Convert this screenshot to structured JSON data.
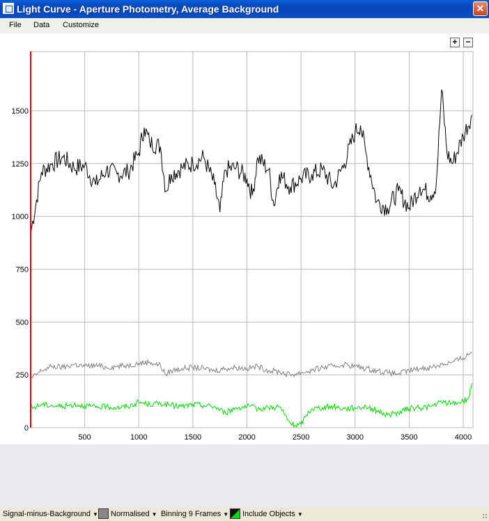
{
  "window": {
    "title": "Light Curve - Aperture Photometry, Average Background",
    "close_glyph": "✕"
  },
  "menu": {
    "items": [
      "File",
      "Data",
      "Customize"
    ]
  },
  "plot_controls": {
    "zoom_in": "+",
    "zoom_out": "−"
  },
  "statusbar": {
    "signal_mode": "Signal-minus-Background",
    "normalised": "Normalised",
    "binning": "Binning 9 Frames",
    "include_objects": "Include Objects"
  },
  "chart_data": {
    "type": "line",
    "title": "",
    "xlabel": "",
    "ylabel": "",
    "xlim": [
      0,
      4090
    ],
    "ylim": [
      0,
      1780
    ],
    "x_ticks": [
      500,
      1000,
      1500,
      2000,
      2500,
      3000,
      3500,
      4000
    ],
    "y_ticks": [
      0,
      250,
      500,
      750,
      1000,
      1250,
      1500
    ],
    "grid": true,
    "cursor_line_x": 0,
    "colors": {
      "target": "#000000",
      "comparison": "#808080",
      "background": "#00DD00",
      "cursor": "#E00000",
      "grid": "#B8B8B8"
    },
    "series": [
      {
        "key": "target",
        "x": [
          0,
          100,
          200,
          300,
          400,
          500,
          600,
          700,
          800,
          900,
          1000,
          1050,
          1100,
          1200,
          1250,
          1300,
          1400,
          1500,
          1600,
          1700,
          1750,
          1800,
          1900,
          2000,
          2050,
          2100,
          2200,
          2250,
          2300,
          2400,
          2500,
          2600,
          2700,
          2800,
          2900,
          3000,
          3050,
          3100,
          3200,
          3300,
          3400,
          3500,
          3600,
          3700,
          3750,
          3800,
          3850,
          3900,
          4000,
          4080
        ],
        "y": [
          920,
          1210,
          1250,
          1280,
          1230,
          1240,
          1150,
          1220,
          1200,
          1210,
          1300,
          1420,
          1350,
          1330,
          1120,
          1200,
          1230,
          1250,
          1280,
          1150,
          1020,
          1220,
          1230,
          1180,
          1100,
          1280,
          1220,
          1050,
          1200,
          1140,
          1180,
          1200,
          1220,
          1140,
          1250,
          1400,
          1430,
          1300,
          1070,
          1040,
          1120,
          1040,
          1140,
          1100,
          1150,
          1600,
          1300,
          1250,
          1380,
          1480
        ]
      },
      {
        "key": "comparison",
        "x": [
          0,
          100,
          200,
          300,
          400,
          500,
          600,
          700,
          800,
          900,
          1000,
          1100,
          1200,
          1250,
          1300,
          1400,
          1500,
          1600,
          1700,
          1800,
          1900,
          2000,
          2100,
          2200,
          2300,
          2400,
          2500,
          2600,
          2700,
          2800,
          2900,
          3000,
          3100,
          3200,
          3300,
          3400,
          3500,
          3600,
          3700,
          3800,
          3900,
          4000,
          4080
        ],
        "y": [
          230,
          270,
          290,
          285,
          300,
          290,
          295,
          285,
          290,
          295,
          305,
          310,
          295,
          250,
          270,
          280,
          285,
          280,
          270,
          280,
          285,
          280,
          290,
          270,
          265,
          250,
          260,
          270,
          285,
          290,
          300,
          290,
          280,
          270,
          260,
          255,
          270,
          280,
          285,
          300,
          310,
          330,
          360
        ]
      },
      {
        "key": "background",
        "x": [
          0,
          100,
          200,
          300,
          400,
          500,
          600,
          700,
          800,
          900,
          1000,
          1100,
          1200,
          1300,
          1400,
          1500,
          1600,
          1700,
          1800,
          1900,
          2000,
          2100,
          2200,
          2300,
          2350,
          2400,
          2450,
          2500,
          2550,
          2600,
          2700,
          2800,
          2900,
          3000,
          3100,
          3200,
          3300,
          3400,
          3500,
          3600,
          3700,
          3800,
          3900,
          4000,
          4050,
          4080
        ],
        "y": [
          90,
          110,
          105,
          100,
          110,
          105,
          95,
          100,
          95,
          100,
          120,
          110,
          115,
          105,
          100,
          110,
          105,
          100,
          70,
          95,
          100,
          90,
          95,
          100,
          60,
          20,
          10,
          15,
          60,
          90,
          95,
          100,
          90,
          95,
          100,
          80,
          60,
          70,
          90,
          95,
          100,
          120,
          115,
          125,
          140,
          210
        ]
      }
    ]
  }
}
